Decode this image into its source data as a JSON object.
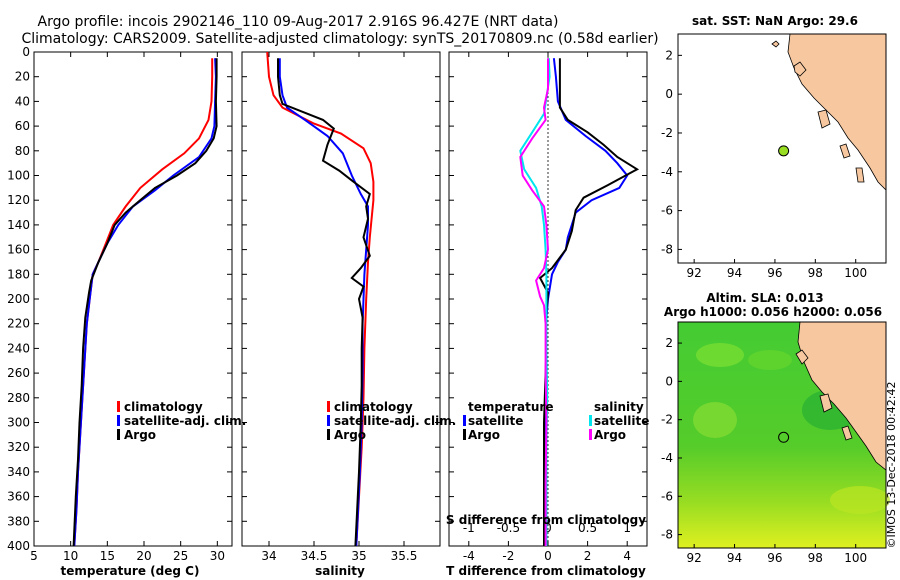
{
  "header": {
    "title_line1": "Argo profile: incois 2902146_110 09-Aug-2017 2.916S 96.427E (NRT data)",
    "title_line2": "Climatology: CARS2009. Satellite-adjusted climatology: synTS_20170809.nc (0.58d earlier)"
  },
  "colors": {
    "climatology": "#ff0000",
    "satellite": "#0000ff",
    "argo": "#000000",
    "sat_s": "#00e5ee",
    "argo_s": "#ff00ff",
    "land": "#f7c8a0",
    "dot": "#99dd22"
  },
  "chart_data": [
    {
      "type": "line",
      "id": "temperature",
      "xlabel": "temperature (deg C)",
      "ylabel": "",
      "xlim": [
        5,
        32
      ],
      "ylim": [
        400,
        0
      ],
      "xticks": [
        5,
        10,
        15,
        20,
        25,
        30
      ],
      "yticks": [
        0,
        20,
        40,
        60,
        80,
        100,
        120,
        140,
        160,
        180,
        200,
        220,
        240,
        260,
        280,
        300,
        320,
        340,
        360,
        380,
        400
      ],
      "legend": [
        "climatology",
        "satellite-adj. clim.",
        "Argo"
      ],
      "series": [
        {
          "name": "climatology",
          "color": "#ff0000",
          "points": [
            [
              29.3,
              5
            ],
            [
              29.3,
              20
            ],
            [
              29.2,
              40
            ],
            [
              28.8,
              55
            ],
            [
              27.5,
              70
            ],
            [
              25.5,
              82
            ],
            [
              22.5,
              95
            ],
            [
              19.5,
              110
            ],
            [
              17.5,
              125
            ],
            [
              15.8,
              140
            ],
            [
              14.8,
              155
            ],
            [
              13.8,
              170
            ],
            [
              13.0,
              180
            ],
            [
              12.6,
              200
            ],
            [
              12.2,
              220
            ],
            [
              11.9,
              250
            ],
            [
              11.6,
              280
            ],
            [
              11.3,
              310
            ],
            [
              11.0,
              340
            ],
            [
              10.8,
              370
            ],
            [
              10.5,
              400
            ]
          ]
        },
        {
          "name": "satellite-adj. clim.",
          "color": "#0000ff",
          "points": [
            [
              29.7,
              5
            ],
            [
              29.8,
              20
            ],
            [
              29.7,
              40
            ],
            [
              29.6,
              60
            ],
            [
              29.2,
              70
            ],
            [
              27.5,
              85
            ],
            [
              24.0,
              100
            ],
            [
              21.5,
              112
            ],
            [
              18.5,
              125
            ],
            [
              16.5,
              140
            ],
            [
              15.0,
              155
            ],
            [
              13.8,
              170
            ],
            [
              13.0,
              180
            ],
            [
              12.6,
              200
            ],
            [
              12.2,
              220
            ],
            [
              11.9,
              250
            ],
            [
              11.6,
              280
            ],
            [
              11.3,
              310
            ],
            [
              11.0,
              340
            ],
            [
              10.8,
              370
            ],
            [
              10.5,
              400
            ]
          ]
        },
        {
          "name": "Argo",
          "color": "#000000",
          "points": [
            [
              29.9,
              5
            ],
            [
              29.9,
              20
            ],
            [
              29.8,
              40
            ],
            [
              29.9,
              60
            ],
            [
              29.5,
              70
            ],
            [
              28.5,
              80
            ],
            [
              27.0,
              90
            ],
            [
              24.5,
              100
            ],
            [
              21.5,
              110
            ],
            [
              19.5,
              120
            ],
            [
              17.5,
              130
            ],
            [
              16.0,
              140
            ],
            [
              15.0,
              155
            ],
            [
              13.8,
              170
            ],
            [
              12.8,
              185
            ],
            [
              12.5,
              195
            ],
            [
              12.0,
              215
            ],
            [
              11.7,
              240
            ],
            [
              11.5,
              270
            ],
            [
              11.2,
              300
            ],
            [
              11.0,
              330
            ],
            [
              10.7,
              360
            ],
            [
              10.4,
              400
            ]
          ]
        }
      ]
    },
    {
      "type": "line",
      "id": "salinity",
      "xlabel": "salinity",
      "ylabel": "",
      "xlim": [
        33.7,
        35.9
      ],
      "ylim": [
        400,
        0
      ],
      "xticks": [
        34,
        34.5,
        35,
        35.5
      ],
      "legend": [
        "climatology",
        "satellite-adj. clim.",
        "Argo"
      ],
      "series": [
        {
          "name": "climatology",
          "color": "#ff0000",
          "points": [
            [
              33.98,
              0
            ],
            [
              34.0,
              20
            ],
            [
              34.05,
              35
            ],
            [
              34.15,
              45
            ],
            [
              34.5,
              58
            ],
            [
              34.8,
              66
            ],
            [
              35.05,
              78
            ],
            [
              35.13,
              90
            ],
            [
              35.16,
              105
            ],
            [
              35.16,
              120
            ],
            [
              35.14,
              135
            ],
            [
              35.12,
              150
            ],
            [
              35.1,
              170
            ],
            [
              35.08,
              200
            ],
            [
              35.06,
              240
            ],
            [
              35.05,
              280
            ],
            [
              35.03,
              320
            ],
            [
              35.0,
              360
            ],
            [
              34.97,
              400
            ]
          ]
        },
        {
          "name": "satellite-adj. clim.",
          "color": "#0000ff",
          "points": [
            [
              34.12,
              5
            ],
            [
              34.12,
              20
            ],
            [
              34.15,
              35
            ],
            [
              34.2,
              45
            ],
            [
              34.4,
              55
            ],
            [
              34.65,
              68
            ],
            [
              34.82,
              82
            ],
            [
              34.92,
              100
            ],
            [
              35.02,
              115
            ],
            [
              35.1,
              125
            ],
            [
              35.1,
              140
            ],
            [
              35.08,
              160
            ],
            [
              35.06,
              180
            ],
            [
              35.05,
              200
            ],
            [
              35.04,
              220
            ],
            [
              35.04,
              260
            ],
            [
              35.03,
              300
            ],
            [
              35.01,
              340
            ],
            [
              34.99,
              370
            ],
            [
              34.97,
              400
            ]
          ]
        },
        {
          "name": "Argo",
          "color": "#000000",
          "points": [
            [
              34.1,
              5
            ],
            [
              34.1,
              20
            ],
            [
              34.12,
              35
            ],
            [
              34.15,
              42
            ],
            [
              34.6,
              55
            ],
            [
              34.72,
              62
            ],
            [
              34.65,
              75
            ],
            [
              34.6,
              88
            ],
            [
              34.78,
              96
            ],
            [
              34.92,
              104
            ],
            [
              35.12,
              115
            ],
            [
              35.08,
              125
            ],
            [
              35.1,
              135
            ],
            [
              35.05,
              150
            ],
            [
              35.12,
              165
            ],
            [
              35.02,
              175
            ],
            [
              34.92,
              183
            ],
            [
              35.05,
              190
            ],
            [
              35.0,
              200
            ],
            [
              35.04,
              215
            ],
            [
              35.03,
              240
            ],
            [
              35.03,
              270
            ],
            [
              35.02,
              300
            ],
            [
              35.0,
              340
            ],
            [
              34.98,
              370
            ],
            [
              34.96,
              400
            ]
          ]
        }
      ]
    },
    {
      "type": "line",
      "id": "differences",
      "xlabel": "T difference from climatology",
      "top_axis_label": "S difference from climatology",
      "xlim": [
        -5,
        5
      ],
      "ylim": [
        400,
        0
      ],
      "xticks": [
        -4,
        -2,
        0,
        2,
        4
      ],
      "top_xticks": [
        "-1",
        "-0.5",
        "0",
        "0.5",
        "1"
      ],
      "legend_temperature": {
        "heading": "temperature",
        "items": [
          "satellite",
          "Argo"
        ]
      },
      "legend_salinity": {
        "heading": "salinity",
        "items": [
          "satellite",
          "Argo"
        ]
      },
      "series": [
        {
          "name": "T satellite",
          "color": "#0000ff",
          "points": [
            [
              0.3,
              5
            ],
            [
              0.4,
              20
            ],
            [
              0.5,
              40
            ],
            [
              0.9,
              55
            ],
            [
              1.9,
              68
            ],
            [
              2.9,
              80
            ],
            [
              3.5,
              90
            ],
            [
              4.0,
              100
            ],
            [
              3.6,
              110
            ],
            [
              2.2,
              120
            ],
            [
              1.4,
              130
            ],
            [
              1.2,
              140
            ],
            [
              1.0,
              150
            ],
            [
              0.9,
              160
            ],
            [
              0.5,
              170
            ],
            [
              0.2,
              180
            ],
            [
              0.0,
              200
            ],
            [
              -0.1,
              220
            ],
            [
              -0.1,
              260
            ],
            [
              -0.1,
              300
            ],
            [
              -0.1,
              340
            ],
            [
              -0.1,
              400
            ]
          ]
        },
        {
          "name": "T Argo",
          "color": "#000000",
          "points": [
            [
              0.6,
              5
            ],
            [
              0.6,
              20
            ],
            [
              0.6,
              45
            ],
            [
              1.0,
              55
            ],
            [
              2.0,
              65
            ],
            [
              2.8,
              75
            ],
            [
              3.5,
              85
            ],
            [
              4.5,
              95
            ],
            [
              3.0,
              108
            ],
            [
              1.8,
              118
            ],
            [
              1.4,
              128
            ],
            [
              1.2,
              145
            ],
            [
              0.9,
              160
            ],
            [
              0.2,
              175
            ],
            [
              -0.4,
              183
            ],
            [
              0.0,
              195
            ],
            [
              -0.1,
              215
            ],
            [
              -0.1,
              250
            ],
            [
              -0.2,
              300
            ],
            [
              -0.2,
              350
            ],
            [
              -0.2,
              400
            ]
          ]
        },
        {
          "name": "S satellite",
          "color": "#00e5ee",
          "points": [
            [
              0.01,
              5
            ],
            [
              0.02,
              20
            ],
            [
              -0.05,
              50
            ],
            [
              -0.2,
              65
            ],
            [
              -0.35,
              80
            ],
            [
              -0.3,
              95
            ],
            [
              -0.15,
              110
            ],
            [
              -0.08,
              125
            ],
            [
              -0.05,
              140
            ],
            [
              -0.03,
              160
            ],
            [
              -0.02,
              180
            ],
            [
              -0.02,
              200
            ],
            [
              -0.02,
              240
            ],
            [
              -0.01,
              280
            ],
            [
              -0.02,
              320
            ],
            [
              -0.02,
              360
            ],
            [
              -0.02,
              400
            ]
          ]
        },
        {
          "name": "S Argo",
          "color": "#ff00ff",
          "points": [
            [
              0.0,
              5
            ],
            [
              0.0,
              30
            ],
            [
              -0.05,
              45
            ],
            [
              -0.03,
              55
            ],
            [
              -0.2,
              70
            ],
            [
              -0.35,
              85
            ],
            [
              -0.32,
              100
            ],
            [
              -0.2,
              112
            ],
            [
              -0.05,
              125
            ],
            [
              -0.02,
              140
            ],
            [
              0.0,
              160
            ],
            [
              -0.05,
              175
            ],
            [
              -0.15,
              185
            ],
            [
              -0.1,
              198
            ],
            [
              -0.05,
              205
            ],
            [
              -0.03,
              220
            ],
            [
              -0.03,
              260
            ],
            [
              -0.02,
              300
            ],
            [
              -0.03,
              350
            ],
            [
              -0.03,
              400
            ]
          ]
        }
      ]
    },
    {
      "type": "heatmap",
      "id": "sst_map",
      "title": "sat. SST: NaN Argo: 29.6",
      "xlim": [
        91.2,
        101.5
      ],
      "ylim": [
        -8.7,
        3.1
      ],
      "xticks": [
        92,
        94,
        96,
        98,
        100
      ],
      "yticks": [
        2,
        0,
        -2,
        -4,
        -6,
        -8
      ],
      "argo_position": [
        96.43,
        -2.92
      ]
    },
    {
      "type": "heatmap",
      "id": "sla_map",
      "title_line1": "Altim. SLA: 0.013",
      "title_line2": "Argo h1000: 0.056 h2000: 0.056",
      "xlim": [
        91.2,
        101.5
      ],
      "ylim": [
        -8.7,
        3.1
      ],
      "xticks": [
        92,
        94,
        96,
        98,
        100
      ],
      "yticks": [
        2,
        0,
        -2,
        -4,
        -6,
        -8
      ],
      "argo_position": [
        96.43,
        -2.92
      ]
    }
  ],
  "footer": {
    "stamp": "©IMOS 13-Dec-2018 00:42:42"
  }
}
